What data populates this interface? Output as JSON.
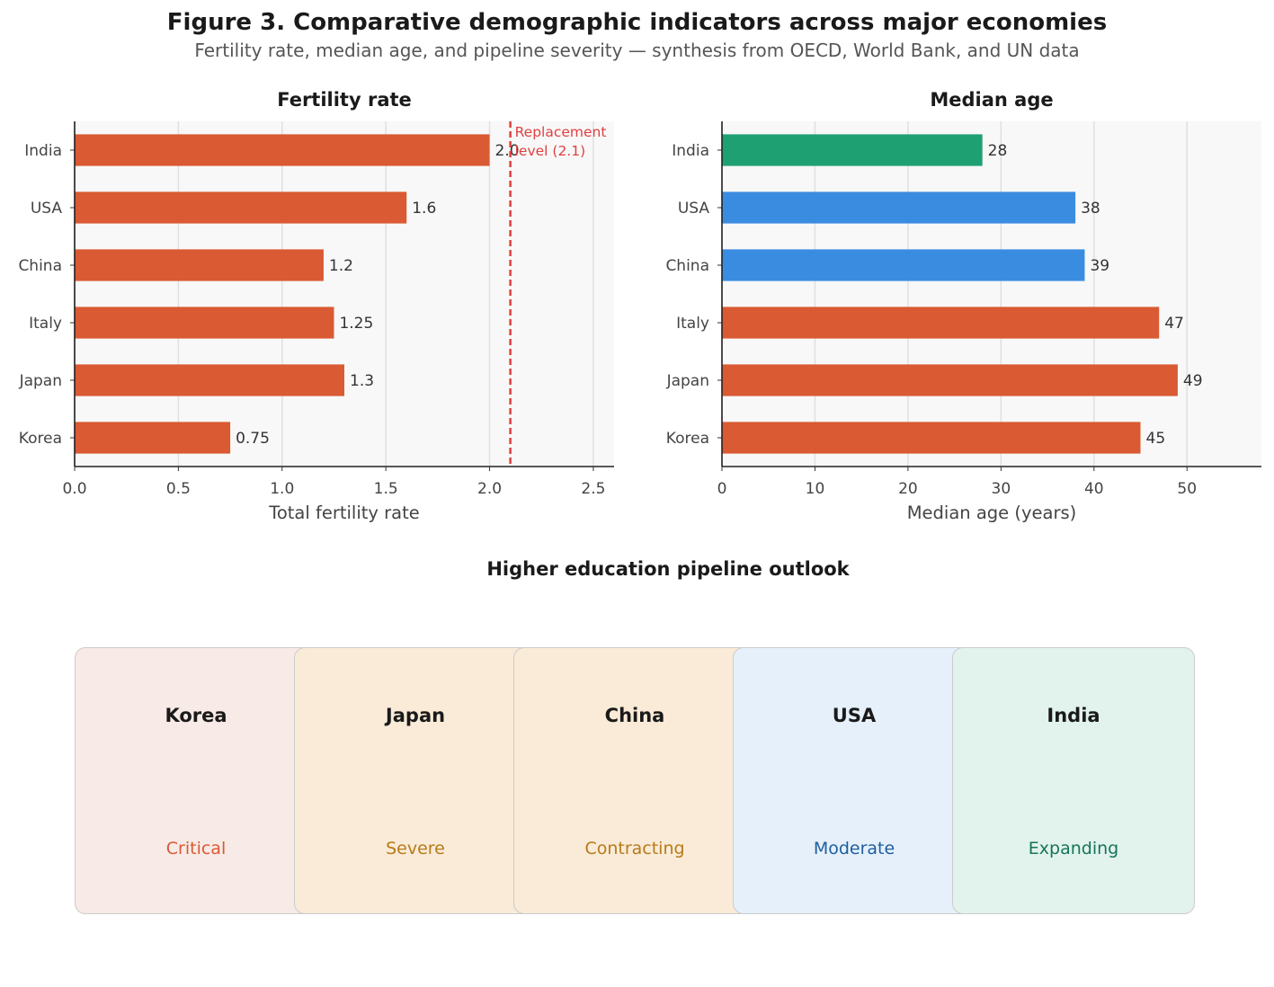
{
  "title": "Figure 3. Comparative demographic indicators across major economies",
  "subtitle": "Fertility rate, median age, and pipeline severity — synthesis from OECD, World Bank, and UN data",
  "chart_data": [
    {
      "type": "bar",
      "orientation": "horizontal",
      "title": "Fertility rate",
      "xlabel": "Total fertility rate",
      "ylabel": "",
      "categories": [
        "India",
        "USA",
        "China",
        "Italy",
        "Japan",
        "Korea"
      ],
      "values": [
        2.0,
        1.6,
        1.2,
        1.25,
        1.3,
        0.75
      ],
      "value_labels": [
        "2.0",
        "1.6",
        "1.2",
        "1.25",
        "1.3",
        "0.75"
      ],
      "bar_colors": [
        "#d95a33",
        "#d95a33",
        "#d95a33",
        "#d95a33",
        "#d95a33",
        "#d95a33"
      ],
      "xlim": [
        0,
        2.6
      ],
      "xticks": [
        0.0,
        0.5,
        1.0,
        1.5,
        2.0,
        2.5
      ],
      "xtick_labels": [
        "0.0",
        "0.5",
        "1.0",
        "1.5",
        "2.0",
        "2.5"
      ],
      "grid": true,
      "reference_line": {
        "value": 2.1,
        "label_line1": "Replacement",
        "label_line2": "level (2.1)",
        "color": "#e04040"
      }
    },
    {
      "type": "bar",
      "orientation": "horizontal",
      "title": "Median age",
      "xlabel": "Median age (years)",
      "ylabel": "",
      "categories": [
        "India",
        "USA",
        "China",
        "Italy",
        "Japan",
        "Korea"
      ],
      "values": [
        28,
        38,
        39,
        47,
        49,
        45
      ],
      "value_labels": [
        "28",
        "38",
        "39",
        "47",
        "49",
        "45"
      ],
      "bar_colors": [
        "#1fa073",
        "#3a8ce0",
        "#3a8ce0",
        "#d95a33",
        "#d95a33",
        "#d95a33"
      ],
      "xlim": [
        0,
        58
      ],
      "xticks": [
        0,
        10,
        20,
        30,
        40,
        50
      ],
      "xtick_labels": [
        "0",
        "10",
        "20",
        "30",
        "40",
        "50"
      ],
      "grid": true
    }
  ],
  "pipeline": {
    "title": "Higher education pipeline outlook",
    "cards": [
      {
        "country": "Korea",
        "status": "Critical",
        "status_color": "#d95a33",
        "bg_color": "#f8eae6"
      },
      {
        "country": "Japan",
        "status": "Severe",
        "status_color": "#b87a18",
        "bg_color": "#f9ebd8"
      },
      {
        "country": "China",
        "status": "Contracting",
        "status_color": "#b87a18",
        "bg_color": "#f9ebd8"
      },
      {
        "country": "USA",
        "status": "Moderate",
        "status_color": "#1c5f9e",
        "bg_color": "#e6f0fa"
      },
      {
        "country": "India",
        "status": "Expanding",
        "status_color": "#16745a",
        "bg_color": "#e1f3ec"
      }
    ]
  }
}
